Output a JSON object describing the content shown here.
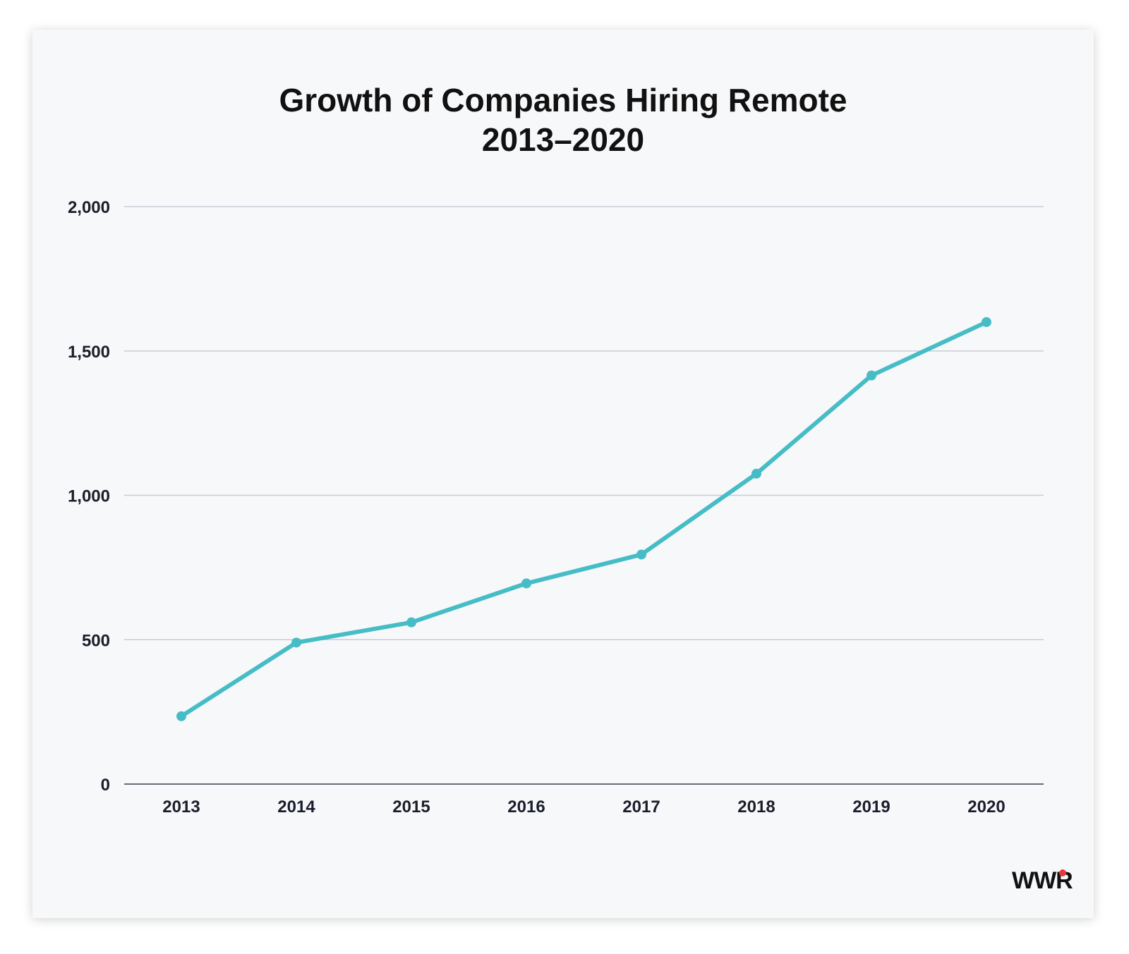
{
  "chart_data": {
    "type": "line",
    "title": "Growth of Companies Hiring Remote",
    "subtitle": "2013–2020",
    "xlabel": "",
    "ylabel": "",
    "categories": [
      "2013",
      "2014",
      "2015",
      "2016",
      "2017",
      "2018",
      "2019",
      "2020"
    ],
    "series": [
      {
        "values": [
          235,
          490,
          560,
          695,
          795,
          1075,
          1415,
          1600
        ]
      }
    ],
    "ylim": [
      0,
      2000
    ],
    "yticks": [
      0,
      500,
      1000,
      1500,
      2000
    ],
    "ytick_labels": [
      "0",
      "500",
      "1,000",
      "1,500",
      "2,000"
    ],
    "grid": true,
    "line_color": "#46bdc6",
    "grid_color": "#c9ccd3",
    "baseline_color": "#3a3d4d"
  },
  "logo": {
    "text": "WWR",
    "dot_color": "#e8383c"
  }
}
